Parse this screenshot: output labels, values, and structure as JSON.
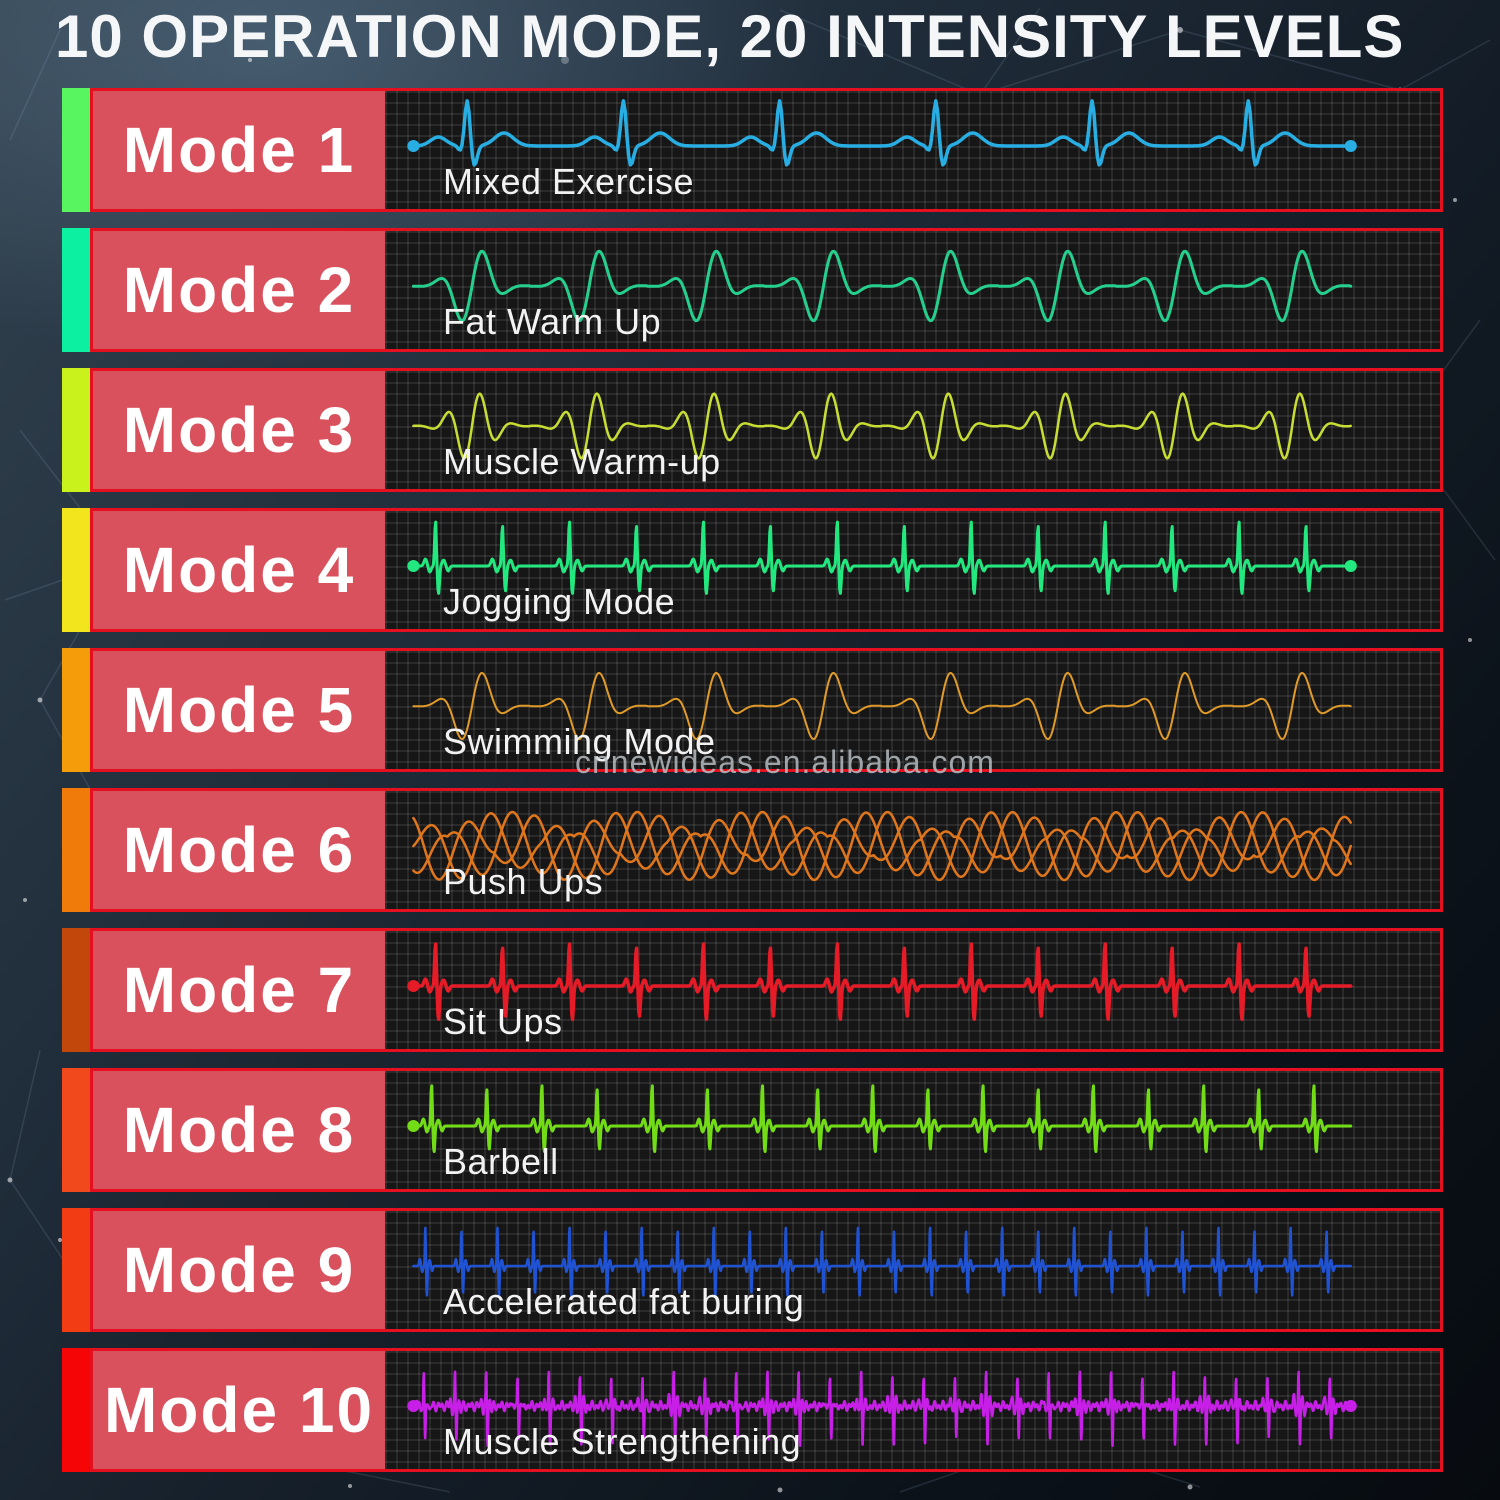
{
  "title": "10 OPERATION MODE, 20 INTENSITY LEVELS",
  "watermark": "cnnewideas.en.alibaba.com",
  "colors": {
    "row_border": "#e4101f",
    "mode_box_bg": "#d9515c",
    "mode_text": "#ffffff",
    "panel_bg": "#161616",
    "panel_grid_line": "#2e2e2e",
    "exercise_text": "#f2f2f2",
    "title_text": "#f4f6f7",
    "watermark_text": "#bcc2c8"
  },
  "modes": [
    {
      "label": "Mode 1",
      "exercise": "Mixed Exercise",
      "bar_color": "#58f561",
      "wave": {
        "type": "ecg",
        "beats": 6,
        "color": "#29aee3",
        "width": 3.5,
        "dots": "both"
      }
    },
    {
      "label": "Mode 2",
      "exercise": "Fat Warm Up",
      "bar_color": "#0cf0a2",
      "wave": {
        "type": "wavelet",
        "beats": 8,
        "freq": 2.5,
        "amp": 42,
        "color": "#25cf8d",
        "width": 3,
        "dots": "none"
      }
    },
    {
      "label": "Mode 3",
      "exercise": "Muscle Warm-up",
      "bar_color": "#c9f21d",
      "wave": {
        "type": "wavelet",
        "beats": 8,
        "freq": 3.5,
        "amp": 36,
        "color": "#c8dd33",
        "width": 2.5,
        "dots": "none"
      }
    },
    {
      "label": "Mode 4",
      "exercise": "Jogging Mode",
      "bar_color": "#f2e51d",
      "wave": {
        "type": "spikes",
        "beats": 14,
        "up": 46,
        "dn": 28,
        "color": "#23e87f",
        "width": 3,
        "dots": "both"
      }
    },
    {
      "label": "Mode 5",
      "exercise": "Swimming Mode",
      "bar_color": "#f59c0a",
      "wave": {
        "type": "wavelet",
        "beats": 8,
        "freq": 2.5,
        "amp": 40,
        "color": "#e09a28",
        "width": 2,
        "dots": "none"
      }
    },
    {
      "label": "Mode 6",
      "exercise": "Push Ups",
      "bar_color": "#f07b0a",
      "wave": {
        "type": "sines",
        "color": "#e0761c",
        "width": 2.5,
        "dots": "none"
      }
    },
    {
      "label": "Mode 7",
      "exercise": "Sit Ups",
      "bar_color": "#c2470a",
      "wave": {
        "type": "spikes",
        "beats": 14,
        "up": 44,
        "dn": 34,
        "color": "#e51b28",
        "width": 3.5,
        "dots": "left"
      }
    },
    {
      "label": "Mode 8",
      "exercise": "Barbell",
      "bar_color": "#f2491c",
      "wave": {
        "type": "spikes",
        "beats": 17,
        "up": 42,
        "dn": 26,
        "color": "#72dd16",
        "width": 3,
        "dots": "left"
      }
    },
    {
      "label": "Mode 9",
      "exercise": "Accelerated fat buring",
      "bar_color": "#f23c14",
      "wave": {
        "type": "dense",
        "beats": 26,
        "up": 40,
        "dn": 30,
        "noise": 0,
        "color": "#1f53d4",
        "width": 2.5,
        "dots": "none"
      }
    },
    {
      "label": "Mode 10",
      "exercise": "Muscle Strengthening",
      "bar_color": "#f50505",
      "wave": {
        "type": "dense",
        "beats": 30,
        "up": 34,
        "dn": 38,
        "noise": 1,
        "color": "#c81fe8",
        "width": 2.5,
        "dots": "both"
      }
    }
  ]
}
